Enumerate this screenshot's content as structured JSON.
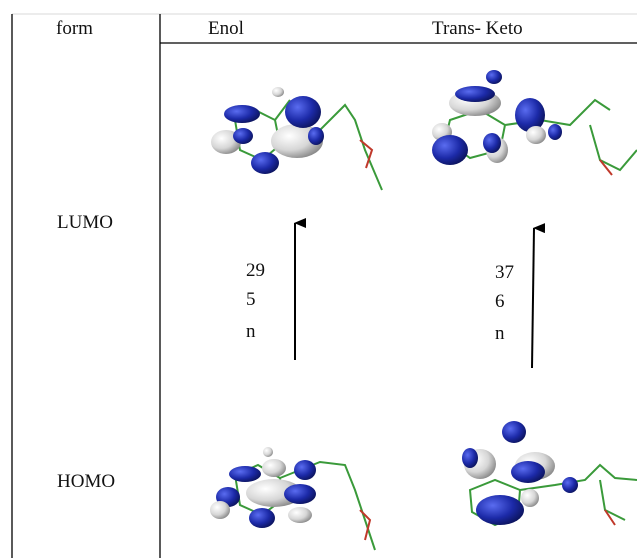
{
  "table": {
    "header": [
      "form",
      "Enol",
      "Trans- Keto"
    ],
    "rows": [
      {
        "label": "LUMO"
      },
      {
        "label": "HOMO"
      }
    ]
  },
  "energy_gaps": [
    [
      "29",
      "5",
      "n"
    ],
    [
      "37",
      "6",
      "n"
    ]
  ]
}
